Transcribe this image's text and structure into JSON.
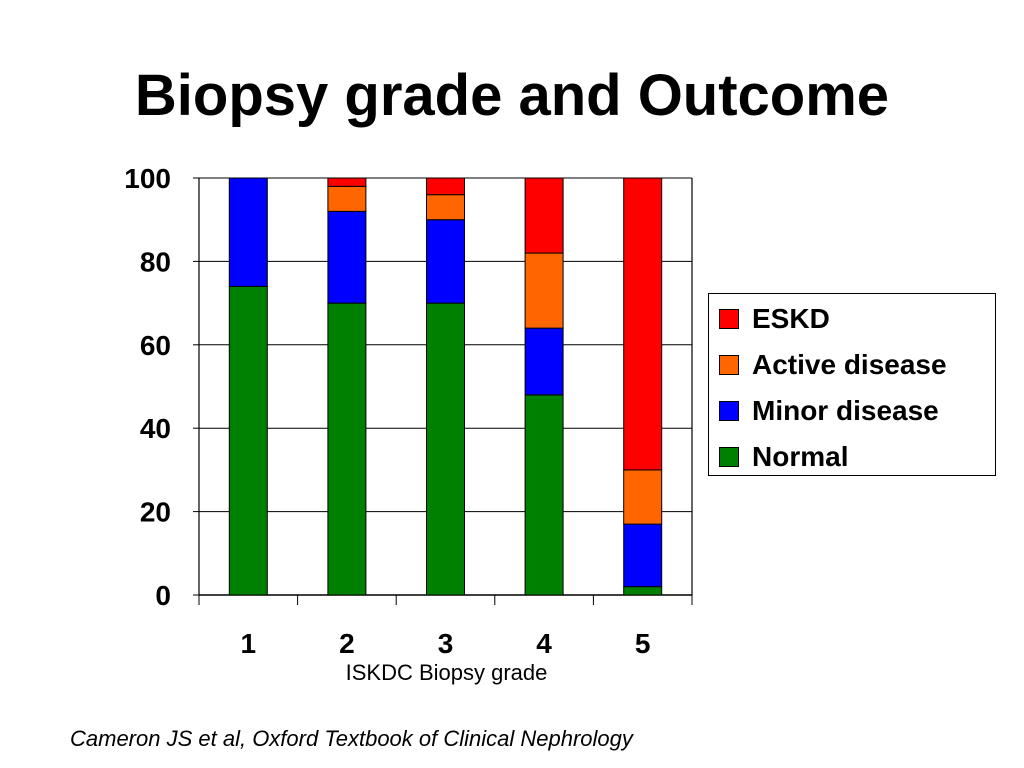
{
  "title": "Biopsy grade and Outcome",
  "citation": "Cameron JS et al, Oxford Textbook of Clinical Nephrology",
  "colors": {
    "ESKD": "#ff0000",
    "Active disease": "#ff6600",
    "Minor disease": "#0000ff",
    "Normal": "#008000"
  },
  "legend": {
    "items": [
      "ESKD",
      "Active disease",
      "Minor disease",
      "Normal"
    ]
  },
  "chart_data": {
    "type": "bar",
    "stacked": true,
    "categories": [
      "1",
      "2",
      "3",
      "4",
      "5"
    ],
    "series": [
      {
        "name": "Normal",
        "values": [
          74,
          70,
          70,
          48,
          2
        ]
      },
      {
        "name": "Minor disease",
        "values": [
          26,
          22,
          20,
          16,
          15
        ]
      },
      {
        "name": "Active disease",
        "values": [
          0,
          6,
          6,
          18,
          13
        ]
      },
      {
        "name": "ESKD",
        "values": [
          0,
          2,
          4,
          18,
          70
        ]
      }
    ],
    "xlabel": "ISKDC Biopsy grade",
    "ylabel": "",
    "ylim": [
      0,
      100
    ],
    "yticks": [
      0,
      20,
      40,
      60,
      80,
      100
    ],
    "grid": true,
    "legend_position": "right"
  }
}
